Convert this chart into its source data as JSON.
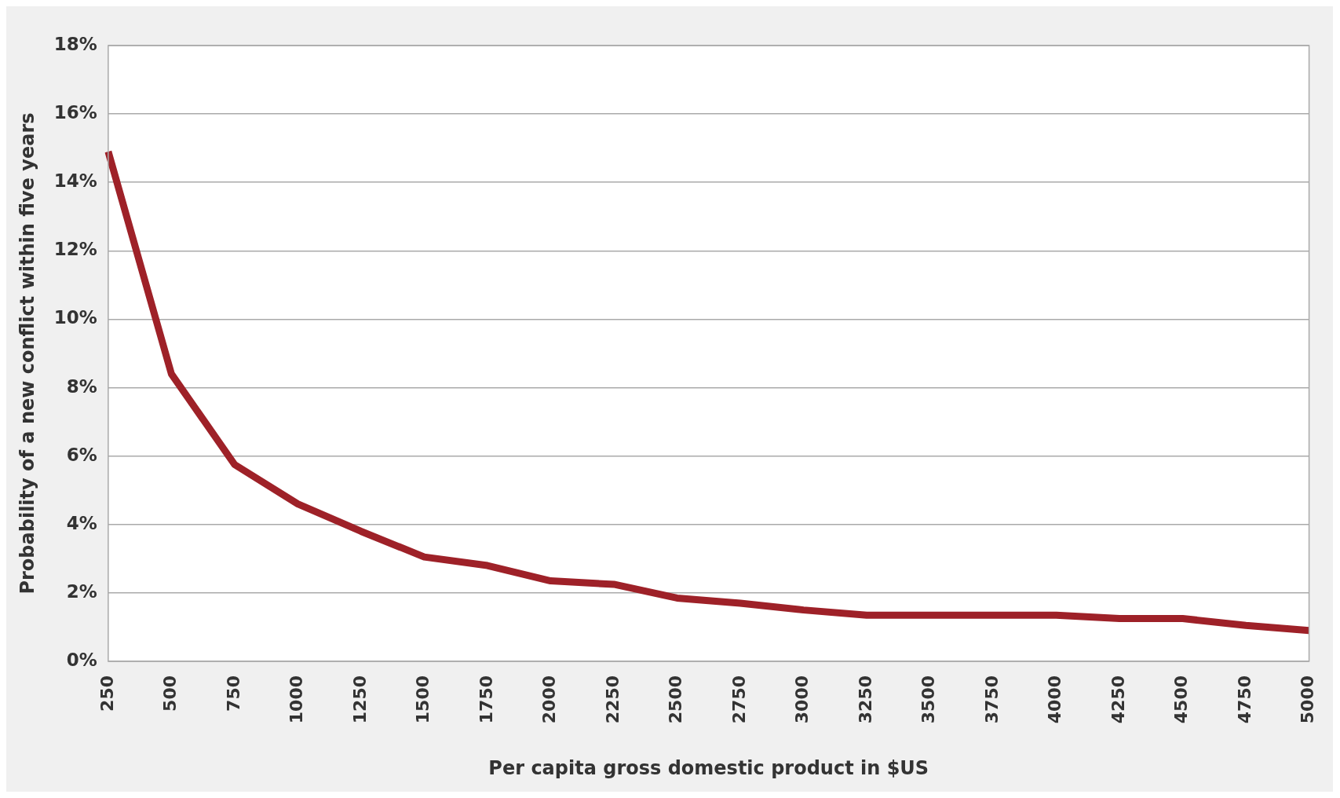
{
  "chart_data": {
    "type": "line",
    "xlabel": "Per capita gross domestic product in $US",
    "ylabel": "Probability of a new conflict within five years",
    "categories": [
      "250",
      "500",
      "750",
      "1000",
      "1250",
      "1500",
      "1750",
      "2000",
      "2250",
      "2500",
      "2750",
      "3000",
      "3250",
      "3500",
      "3750",
      "4000",
      "4250",
      "4500",
      "4750",
      "5000"
    ],
    "series": [
      {
        "color": "#9e2128",
        "values": [
          14.9,
          8.4,
          5.75,
          4.6,
          3.8,
          3.05,
          2.8,
          2.35,
          2.25,
          1.85,
          1.7,
          1.5,
          1.35,
          1.35,
          1.35,
          1.35,
          1.25,
          1.25,
          1.05,
          0.9
        ]
      }
    ],
    "ylim": [
      0,
      18
    ],
    "yticks": [
      {
        "value": 0,
        "label": "0%"
      },
      {
        "value": 2,
        "label": "2%"
      },
      {
        "value": 4,
        "label": "4%"
      },
      {
        "value": 6,
        "label": "6%"
      },
      {
        "value": 8,
        "label": "8%"
      },
      {
        "value": 10,
        "label": "10%"
      },
      {
        "value": 12,
        "label": "12%"
      },
      {
        "value": 14,
        "label": "14%"
      },
      {
        "value": 16,
        "label": "16%"
      },
      {
        "value": 18,
        "label": "18%"
      }
    ],
    "grid": "y",
    "legend": false,
    "marker": "none",
    "line_style": "solid"
  }
}
